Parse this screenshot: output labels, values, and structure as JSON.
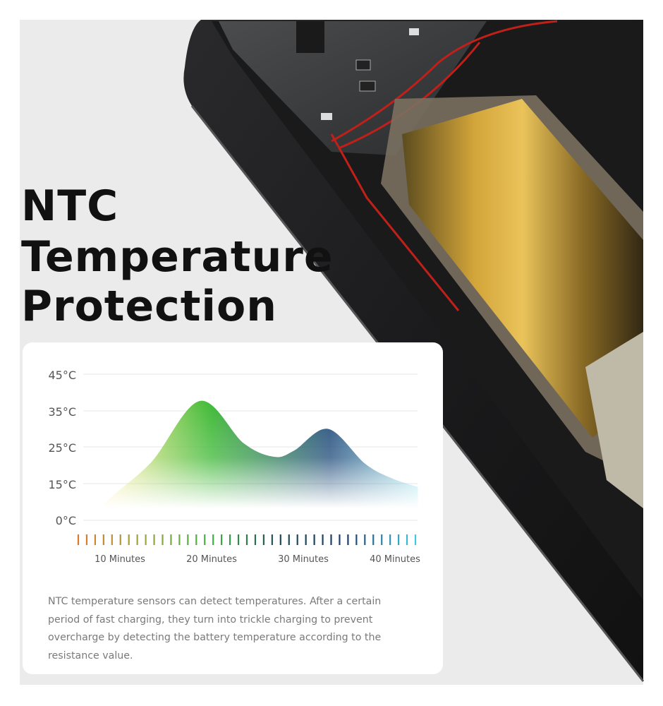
{
  "headline": {
    "line1": "NTC",
    "line2": "Temperature",
    "line3": "Protection"
  },
  "description": "NTC temperature sensors can detect temperatures. After a certain period of fast charging, they turn into trickle charging to prevent overcharge by detecting the battery temperature according to the resistance value.",
  "chart_data": {
    "type": "area",
    "title": "",
    "xlabel": "",
    "ylabel": "",
    "y_ticks": [
      {
        "value": 45,
        "label": "45°C"
      },
      {
        "value": 35,
        "label": "35°C"
      },
      {
        "value": 25,
        "label": "25°C"
      },
      {
        "value": 15,
        "label": "15°C"
      },
      {
        "value": 0,
        "label": "0°C"
      }
    ],
    "x_ticks": [
      {
        "value": 10,
        "label": "10 Minutes"
      },
      {
        "value": 20,
        "label": "20 Minutes"
      },
      {
        "value": 30,
        "label": "30 Minutes"
      },
      {
        "value": 40,
        "label": "40 Minutes"
      }
    ],
    "ylim": [
      0,
      45
    ],
    "grid": true,
    "x": [
      8.2,
      13.3,
      18.7,
      23.5,
      26.8,
      29.0,
      32.7,
      36.7,
      39.5,
      42.5
    ],
    "y": [
      7.8,
      20.5,
      37.7,
      26.0,
      22.3,
      24.0,
      30.0,
      20.5,
      16.6,
      13.6
    ],
    "fill_gradient": [
      "#f3ea8a",
      "#3cb834",
      "#1f4a7a",
      "#8fe0ec"
    ],
    "tick_color_stops": [
      "#e0782a",
      "#9aa83a",
      "#3cb043",
      "#1e4a55",
      "#1c3d6e",
      "#3fc8e0"
    ],
    "minor_tick_count": 41
  }
}
